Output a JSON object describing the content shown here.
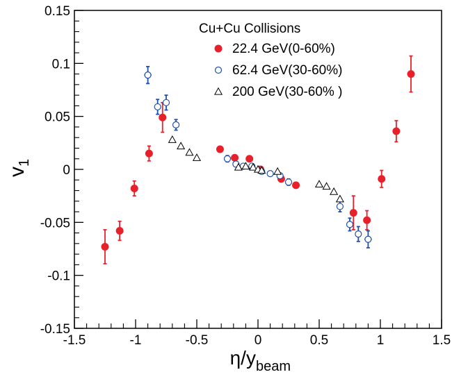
{
  "chart_data": {
    "type": "scatter",
    "title": "",
    "xlabel": "η/y",
    "xlabel_sub": "beam",
    "ylabel": "v",
    "ylabel_sub": "1",
    "xlim": [
      -1.5,
      1.5
    ],
    "ylim": [
      -0.15,
      0.15
    ],
    "grid": false,
    "legend_placement": "top-center",
    "legend_title": "Cu+Cu Collisions",
    "x_ticks": [
      -1.5,
      -1,
      -0.5,
      0,
      0.5,
      1,
      1.5
    ],
    "x_tick_labels": [
      "-1.5",
      "-1",
      "-0.5",
      "0",
      "0.5",
      "1",
      "1.5"
    ],
    "y_ticks": [
      -0.15,
      -0.1,
      -0.05,
      0,
      0.05,
      0.1,
      0.15
    ],
    "y_tick_labels": [
      "-0.15",
      "-0.1",
      "-0.05",
      "0",
      "0.05",
      "0.1",
      "0.15"
    ],
    "series": [
      {
        "name": "22.4 GeV(0-60%)",
        "marker": "filled-circle",
        "color": "#e8202a",
        "errcolor": "#e8202a",
        "points": [
          {
            "x": -1.25,
            "y": -0.073,
            "yerr": 0.016,
            "xerr": 0.03
          },
          {
            "x": -1.13,
            "y": -0.058,
            "yerr": 0.009,
            "xerr": 0
          },
          {
            "x": -1.01,
            "y": -0.018,
            "yerr": 0.007,
            "xerr": 0
          },
          {
            "x": -0.89,
            "y": 0.015,
            "yerr": 0.007,
            "xerr": 0
          },
          {
            "x": -0.78,
            "y": 0.049,
            "yerr": 0.014,
            "xerr": 0
          },
          {
            "x": -0.31,
            "y": 0.019,
            "yerr": 0.002,
            "xerr": 0
          },
          {
            "x": -0.19,
            "y": 0.011,
            "yerr": 0.002,
            "xerr": 0
          },
          {
            "x": -0.07,
            "y": 0.01,
            "yerr": 0.002,
            "xerr": 0
          },
          {
            "x": 0.02,
            "y": 0.0,
            "yerr": 0.002,
            "xerr": 0
          },
          {
            "x": 0.19,
            "y": -0.009,
            "yerr": 0.002,
            "xerr": 0
          },
          {
            "x": 0.31,
            "y": -0.015,
            "yerr": 0.002,
            "xerr": 0
          },
          {
            "x": 0.78,
            "y": -0.041,
            "yerr": 0.016,
            "xerr": 0
          },
          {
            "x": 0.89,
            "y": -0.048,
            "yerr": 0.009,
            "xerr": 0
          },
          {
            "x": 1.01,
            "y": -0.009,
            "yerr": 0.008,
            "xerr": 0
          },
          {
            "x": 1.13,
            "y": 0.036,
            "yerr": 0.01,
            "xerr": 0
          },
          {
            "x": 1.25,
            "y": 0.09,
            "yerr": 0.017,
            "xerr": 0.03
          }
        ]
      },
      {
        "name": "62.4 GeV(30-60%)",
        "marker": "open-circle",
        "color": "#1f4fa8",
        "errcolor": "#1f4fa8",
        "points": [
          {
            "x": -0.9,
            "y": 0.089,
            "yerr": 0.008,
            "xerr": 0.03
          },
          {
            "x": -0.82,
            "y": 0.059,
            "yerr": 0.007,
            "xerr": 0
          },
          {
            "x": -0.75,
            "y": 0.063,
            "yerr": 0.007,
            "xerr": 0
          },
          {
            "x": -0.67,
            "y": 0.042,
            "yerr": 0.005,
            "xerr": 0
          },
          {
            "x": -0.25,
            "y": 0.01,
            "yerr": 0.003,
            "xerr": 0
          },
          {
            "x": -0.18,
            "y": 0.005,
            "yerr": 0.002,
            "xerr": 0
          },
          {
            "x": -0.12,
            "y": 0.003,
            "yerr": 0.002,
            "xerr": 0
          },
          {
            "x": -0.05,
            "y": 0.003,
            "yerr": 0.002,
            "xerr": 0
          },
          {
            "x": 0.03,
            "y": -0.002,
            "yerr": 0.002,
            "xerr": 0
          },
          {
            "x": 0.1,
            "y": -0.004,
            "yerr": 0.002,
            "xerr": 0
          },
          {
            "x": 0.18,
            "y": -0.006,
            "yerr": 0.002,
            "xerr": 0
          },
          {
            "x": 0.25,
            "y": -0.012,
            "yerr": 0.003,
            "xerr": 0
          },
          {
            "x": 0.67,
            "y": -0.035,
            "yerr": 0.005,
            "xerr": 0
          },
          {
            "x": 0.75,
            "y": -0.052,
            "yerr": 0.006,
            "xerr": 0
          },
          {
            "x": 0.82,
            "y": -0.061,
            "yerr": 0.007,
            "xerr": 0
          },
          {
            "x": 0.9,
            "y": -0.066,
            "yerr": 0.008,
            "xerr": 0.03
          }
        ]
      },
      {
        "name": "200  GeV(30-60% )",
        "marker": "open-triangle",
        "color": "#000000",
        "errcolor": "#000000",
        "points": [
          {
            "x": -0.7,
            "y": 0.028,
            "yerr": 0,
            "xerr": 0
          },
          {
            "x": -0.63,
            "y": 0.022,
            "yerr": 0,
            "xerr": 0
          },
          {
            "x": -0.56,
            "y": 0.016,
            "yerr": 0,
            "xerr": 0
          },
          {
            "x": -0.5,
            "y": 0.011,
            "yerr": 0,
            "xerr": 0
          },
          {
            "x": -0.16,
            "y": 0.002,
            "yerr": 0,
            "xerr": 0
          },
          {
            "x": -0.1,
            "y": 0.003,
            "yerr": 0,
            "xerr": 0
          },
          {
            "x": -0.04,
            "y": 0.002,
            "yerr": 0,
            "xerr": 0
          },
          {
            "x": 0.0,
            "y": 0.0,
            "yerr": 0,
            "xerr": 0
          },
          {
            "x": 0.03,
            "y": -0.001,
            "yerr": 0,
            "xerr": 0
          },
          {
            "x": 0.16,
            "y": -0.002,
            "yerr": 0,
            "xerr": 0
          },
          {
            "x": 0.5,
            "y": -0.014,
            "yerr": 0,
            "xerr": 0
          },
          {
            "x": 0.56,
            "y": -0.016,
            "yerr": 0,
            "xerr": 0
          },
          {
            "x": 0.62,
            "y": -0.021,
            "yerr": 0,
            "xerr": 0
          },
          {
            "x": 0.67,
            "y": -0.028,
            "yerr": 0,
            "xerr": 0
          }
        ]
      }
    ]
  }
}
